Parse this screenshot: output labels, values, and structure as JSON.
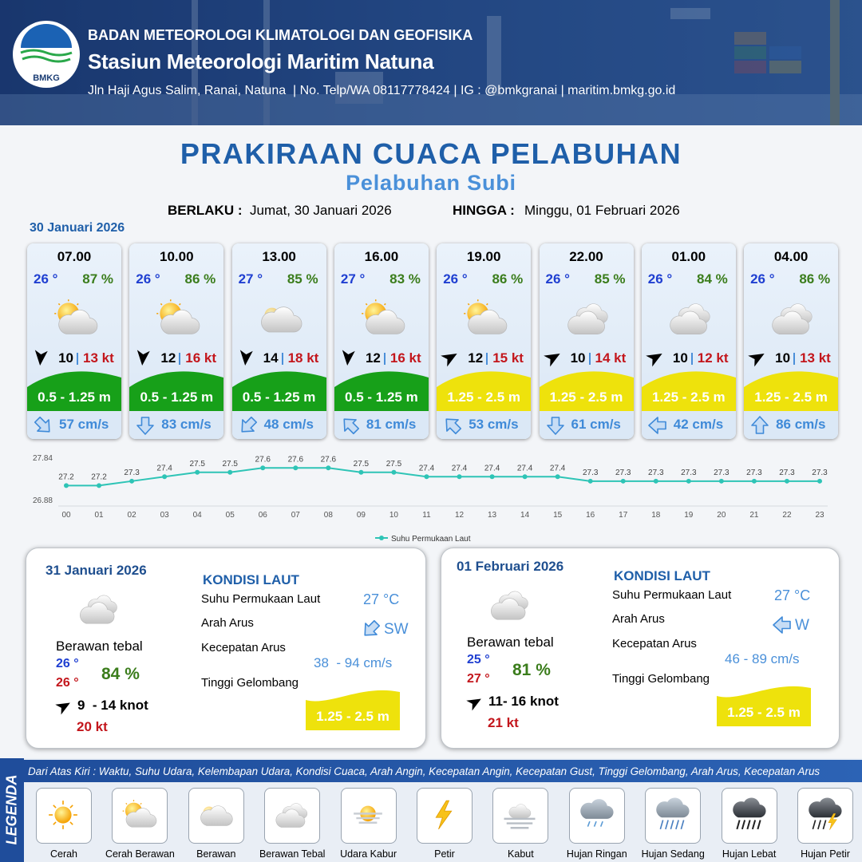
{
  "header": {
    "logo": "BMKG",
    "organization": "BADAN METEOROLOGI KLIMATOLOGI DAN GEOFISIKA",
    "station": "Stasiun Meteorologi Maritim Natuna",
    "address": "Jln Haji Agus Salim, Ranai, Natuna  | No. Telp/WA 08117778424 | IG : @bmkgranai | maritim.bmkg.go.id"
  },
  "title": "PRAKIRAAN CUACA PELABUHAN",
  "subtitle": "Pelabuhan Subi",
  "validity": {
    "from_label": "BERLAKU :",
    "from": "Jumat, 30 Januari 2026",
    "to_label": "HINGGA :",
    "to": "Minggu, 01 Februari 2026"
  },
  "forecast_date": "30 Januari 2026",
  "hourly": [
    {
      "time": "07.00",
      "temp": "26 °",
      "humidity": "87 %",
      "wind": "10",
      "gust": "13 kt",
      "wave": "0.5 - 1.25 m",
      "wave_color": "#17a019",
      "current": "57 cm/s"
    },
    {
      "time": "10.00",
      "temp": "26 °",
      "humidity": "86 %",
      "wind": "12",
      "gust": "16 kt",
      "wave": "0.5 - 1.25 m",
      "wave_color": "#17a019",
      "current": "83 cm/s"
    },
    {
      "time": "13.00",
      "temp": "27 °",
      "humidity": "85 %",
      "wind": "14",
      "gust": "18 kt",
      "wave": "0.5 - 1.25 m",
      "wave_color": "#17a019",
      "current": "48 cm/s"
    },
    {
      "time": "16.00",
      "temp": "27 °",
      "humidity": "83 %",
      "wind": "12",
      "gust": "16 kt",
      "wave": "0.5 - 1.25 m",
      "wave_color": "#17a019",
      "current": "81 cm/s"
    },
    {
      "time": "19.00",
      "temp": "26 °",
      "humidity": "86 %",
      "wind": "12",
      "gust": "15 kt",
      "wave": "1.25 - 2.5 m",
      "wave_color": "#eee20c",
      "current": "53 cm/s"
    },
    {
      "time": "22.00",
      "temp": "26 °",
      "humidity": "85 %",
      "wind": "10",
      "gust": "14 kt",
      "wave": "1.25 - 2.5 m",
      "wave_color": "#eee20c",
      "current": "61 cm/s"
    },
    {
      "time": "01.00",
      "temp": "26 °",
      "humidity": "84 %",
      "wind": "10",
      "gust": "12 kt",
      "wave": "1.25 - 2.5 m",
      "wave_color": "#eee20c",
      "current": "42 cm/s"
    },
    {
      "time": "04.00",
      "temp": "26 °",
      "humidity": "86 %",
      "wind": "10",
      "gust": "13 kt",
      "wave": "1.25 - 2.5 m",
      "wave_color": "#eee20c",
      "current": "86 cm/s"
    }
  ],
  "chart_data": {
    "type": "line",
    "categories": [
      "00",
      "01",
      "02",
      "03",
      "04",
      "05",
      "06",
      "07",
      "08",
      "09",
      "10",
      "11",
      "12",
      "13",
      "14",
      "15",
      "16",
      "17",
      "18",
      "19",
      "20",
      "21",
      "22",
      "23"
    ],
    "series": [
      {
        "name": "Suhu Permukaan Laut",
        "color": "#2ec4b6",
        "values": [
          27.2,
          27.2,
          27.3,
          27.4,
          27.5,
          27.5,
          27.6,
          27.6,
          27.6,
          27.5,
          27.5,
          27.4,
          27.4,
          27.4,
          27.4,
          27.4,
          27.3,
          27.3,
          27.3,
          27.3,
          27.3,
          27.3,
          27.3,
          27.3
        ]
      }
    ],
    "ylim": [
      26.88,
      27.84
    ],
    "yticks": [
      26.88,
      27.84
    ],
    "grid": false,
    "legend": "bottom"
  },
  "daily": [
    {
      "date": "31 Januari 2026",
      "condition": "Berawan tebal",
      "temp_min": "26 °",
      "temp_max": "26 °",
      "humidity": "84 %",
      "wind": "9  - 14 knot",
      "gust": "20 kt",
      "heading": "KONDISI LAUT",
      "labels": [
        "Suhu Permukaan Laut",
        "Arah Arus",
        "Kecepatan Arus",
        "Tinggi Gelombang"
      ],
      "sst": "27 °C",
      "current_dir": "SW",
      "current_speed": "38  - 94 cm/s",
      "wave": "1.25 - 2.5 m",
      "wave_color": "#eee20c"
    },
    {
      "date": "01 Februari 2026",
      "condition": "Berawan tebal",
      "temp_min": "25 °",
      "temp_max": "27 °",
      "humidity": "81 %",
      "wind": "11- 16 knot",
      "gust": "21 kt",
      "heading": "KONDISI LAUT",
      "labels": [
        "Suhu Permukaan Laut",
        "Arah Arus",
        "Kecepatan Arus",
        "Tinggi Gelombang"
      ],
      "sst": "27 °C",
      "current_dir": "W",
      "current_speed": "46 - 89 cm/s",
      "wave": "1.25 - 2.5 m",
      "wave_color": "#eee20c"
    }
  ],
  "legend": {
    "title": "LEGENDA",
    "description": "Dari Atas Kiri : Waktu, Suhu Udara, Kelembapan Udara, Kondisi Cuaca, Arah Angin, Kecepatan Angin, Kecepatan Gust, Tinggi Gelombang, Arah Arus, Kecepatan Arus",
    "items": [
      "Cerah",
      "Cerah Berawan",
      "Berawan",
      "Berawan Tebal",
      "Udara Kabur",
      "Petir",
      "Kabut",
      "Hujan Ringan",
      "Hujan Sedang",
      "Hujan Lebat",
      "Hujan Petir"
    ]
  }
}
